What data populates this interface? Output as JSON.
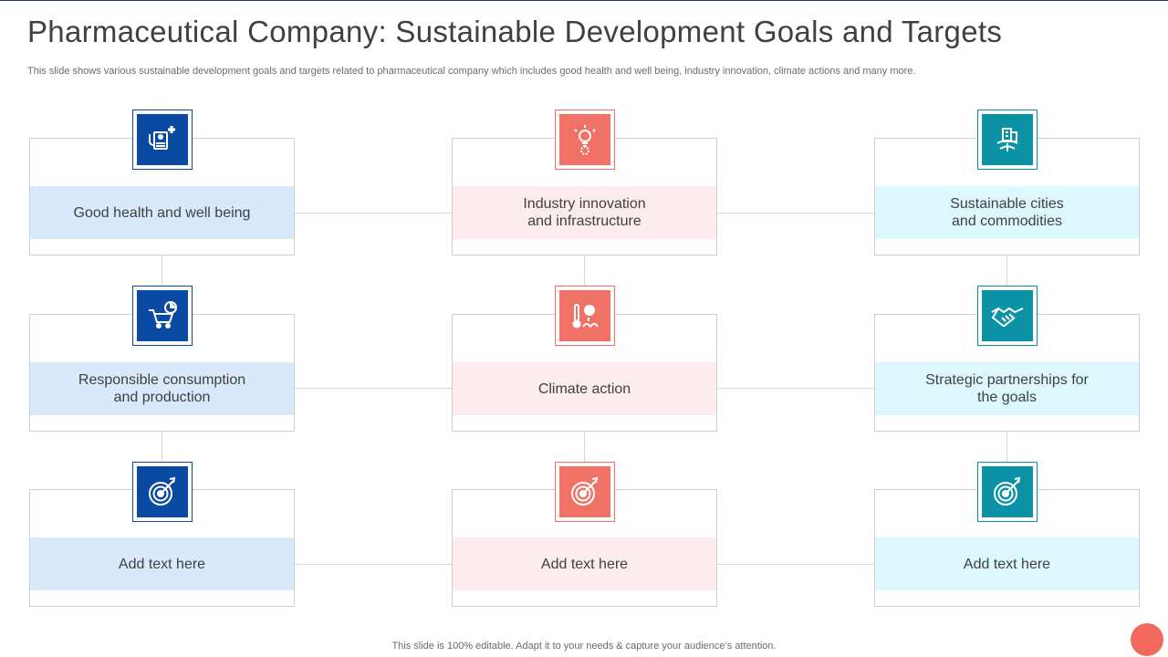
{
  "slide": {
    "title": "Pharmaceutical Company: Sustainable Development Goals and Targets",
    "subtitle": "This slide shows various sustainable development goals and targets related to pharmaceutical company which includes good health and well being, industry innovation, climate actions and many more.",
    "footer": "This slide is 100% editable. Adapt it to your needs & capture your audience’s attention."
  },
  "colors": {
    "blue_accent": "#0b4aa2",
    "pink_accent": "#f07266",
    "cyan_accent": "#0c92a6",
    "blue_band": "#d9e8fb",
    "pink_band": "#fdeced",
    "cyan_band": "#dcf8fd"
  },
  "goals": [
    {
      "label": "Good health and well being",
      "icon": "medical-checkup-icon"
    },
    {
      "label": "Industry innovation\nand infrastructure",
      "icon": "innovation-gear-bulb-icon"
    },
    {
      "label": "Sustainable cities\nand commodities",
      "icon": "city-building-icon"
    },
    {
      "label": "Responsible consumption\nand production",
      "icon": "shopping-cart-chart-icon"
    },
    {
      "label": "Climate action",
      "icon": "climate-thermometer-icon"
    },
    {
      "label": "Strategic partnerships for\nthe goals",
      "icon": "handshake-icon"
    },
    {
      "label": "Add text here",
      "icon": "target-arrow-icon"
    },
    {
      "label": "Add text here",
      "icon": "target-arrow-icon"
    },
    {
      "label": "Add text here",
      "icon": "target-arrow-icon"
    }
  ]
}
